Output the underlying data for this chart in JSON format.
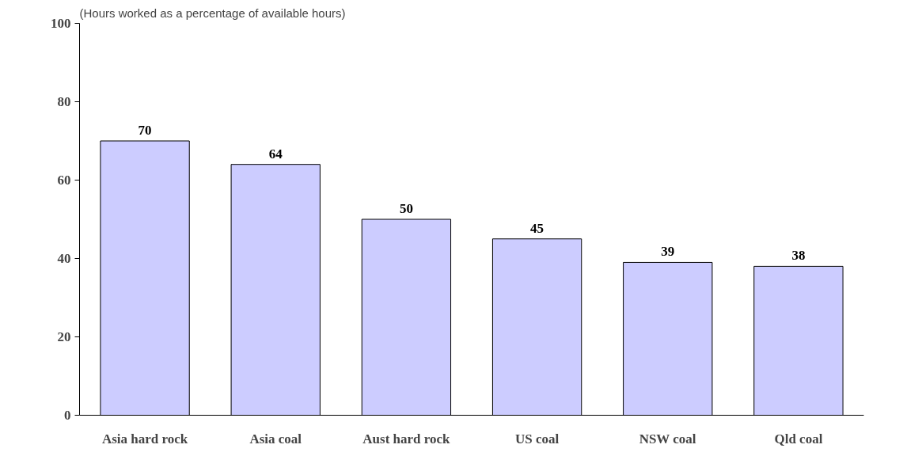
{
  "chart_data": {
    "type": "bar",
    "subtitle": "(Hours worked as a percentage of available hours)",
    "categories": [
      "Asia hard rock",
      "Asia coal",
      "Aust hard rock",
      "US coal",
      "NSW coal",
      "Qld coal"
    ],
    "values": [
      70,
      64,
      50,
      45,
      39,
      38
    ],
    "color": "#ccccff",
    "ylim": [
      0,
      100
    ],
    "yticks": [
      0,
      20,
      40,
      60,
      80,
      100
    ],
    "grid": false,
    "data_labels": true
  }
}
